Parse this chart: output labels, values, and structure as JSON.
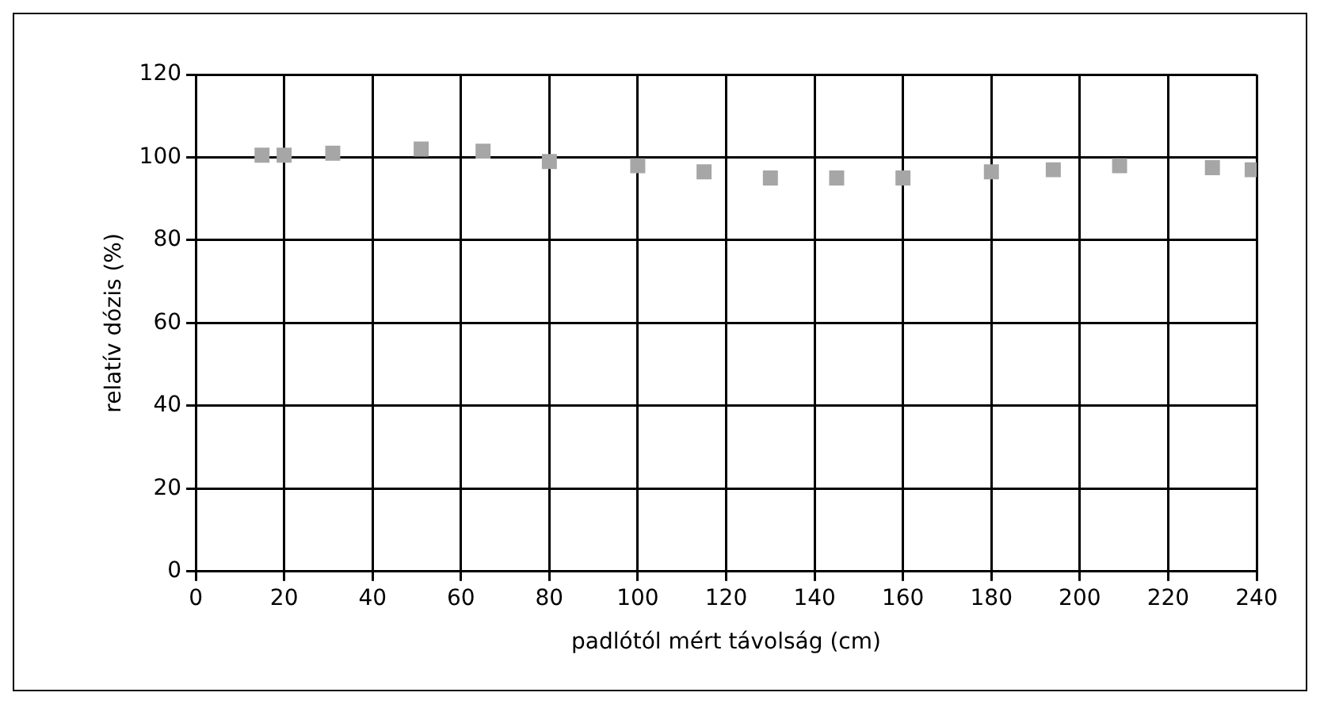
{
  "chart_data": {
    "type": "scatter",
    "xlabel": "padlótól mért távolság (cm)",
    "ylabel": "relatív dózis (%)",
    "x": [
      15,
      20,
      31,
      51,
      65,
      80,
      100,
      115,
      130,
      145,
      160,
      180,
      194,
      209,
      230,
      239
    ],
    "series": [
      {
        "color": "#a6a6a6",
        "values": [
          100.5,
          100.5,
          101,
          102,
          101.5,
          99,
          98,
          96.5,
          95,
          95,
          95,
          96.5,
          97,
          98,
          97.5,
          97
        ]
      }
    ],
    "xlim": [
      0,
      240
    ],
    "xticks": [
      0,
      20,
      40,
      60,
      80,
      100,
      120,
      140,
      160,
      180,
      200,
      220,
      240
    ],
    "ylim": [
      0,
      120
    ],
    "yticks": [
      0,
      20,
      40,
      60,
      80,
      100,
      120
    ],
    "grid": true,
    "marker": "square",
    "legend": false
  }
}
